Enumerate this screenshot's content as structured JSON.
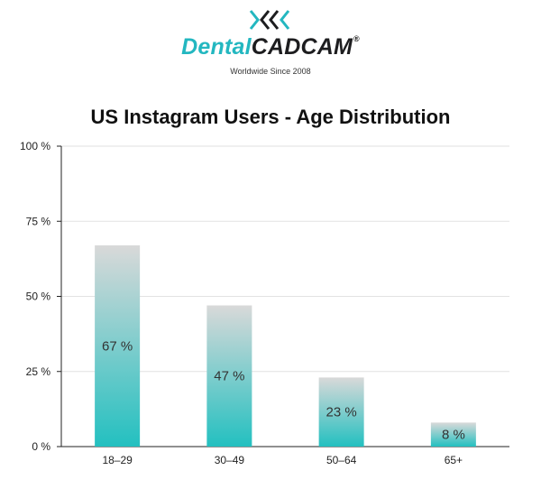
{
  "brand": {
    "name_part1": "Dental",
    "name_part2": "CADCAM",
    "registered": "®",
    "tagline": "Worldwide Since 2008",
    "logo_icon": "dcc-chevrons-icon",
    "accent_color": "#23b7c0",
    "dark_color": "#1d1d1f"
  },
  "chart_data": {
    "type": "bar",
    "title": "US Instagram Users - Age Distribution",
    "xlabel": "",
    "ylabel": "",
    "categories": [
      "18–29",
      "30–49",
      "50–64",
      "65+"
    ],
    "values": [
      67,
      47,
      23,
      8
    ],
    "data_labels": [
      "67 %",
      "47 %",
      "23 %",
      "8 %"
    ],
    "ylim": [
      0,
      100
    ],
    "yticks": [
      0,
      25,
      50,
      75,
      100
    ],
    "ytick_labels": [
      "0 %",
      "25 %",
      "50 %",
      "75 %",
      "100 %"
    ],
    "grid": true,
    "legend": "none",
    "bar_gradient": [
      "#d9d9d9",
      "#23c0c0"
    ]
  }
}
